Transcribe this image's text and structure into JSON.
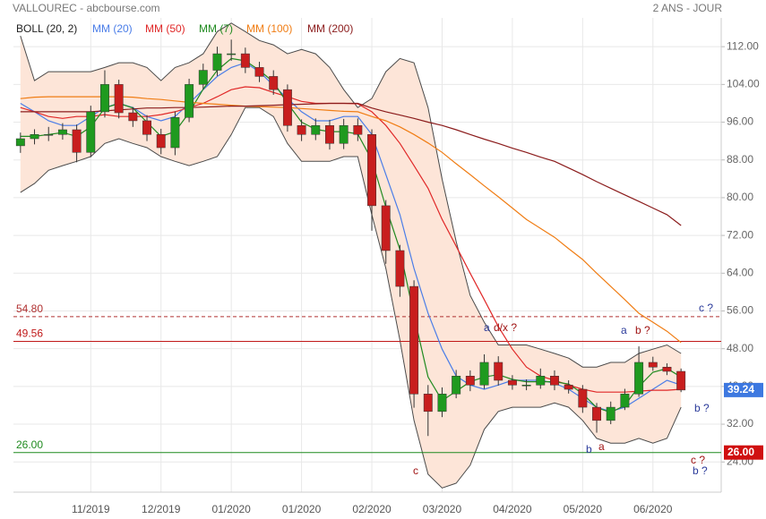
{
  "chart_data": {
    "type": "candlestick",
    "title": "VALLOUREC - abcbourse.com",
    "subtitle": "2 ANS - JOUR",
    "categories": [
      null,
      null,
      null,
      null,
      null,
      "11/2019",
      null,
      null,
      null,
      null,
      "12/2019",
      null,
      null,
      null,
      null,
      "01/2020",
      null,
      null,
      null,
      null,
      "01/2020",
      null,
      null,
      null,
      null,
      "02/2020",
      null,
      null,
      null,
      null,
      "03/2020",
      null,
      null,
      null,
      null,
      "04/2020",
      null,
      null,
      null,
      null,
      "05/2020",
      null,
      null,
      null,
      null,
      "06/2020",
      null,
      null
    ],
    "open": [
      91,
      92.5,
      93.4,
      93.4,
      94.4,
      89.6,
      98.2,
      104,
      98,
      96.3,
      93.4,
      90.6,
      97,
      104,
      107,
      110.5,
      110.5,
      107.6,
      105.7,
      102.9,
      95.3,
      93.4,
      95.3,
      91.5,
      95.3,
      93.4,
      78.3,
      68.8,
      61.2,
      38.4,
      34.7,
      38.4,
      42.2,
      40.3,
      45.1,
      41.3,
      40.3,
      40.3,
      42.2,
      40.3,
      39.4,
      35.6,
      32.8,
      35.6,
      38.4,
      45.1,
      44.1,
      43.2
    ],
    "high": [
      93.8,
      94.5,
      95,
      95.8,
      95.5,
      99.5,
      107,
      105,
      99.2,
      97.5,
      94.6,
      98.3,
      105.2,
      108.4,
      112,
      113.5,
      111.8,
      108.8,
      107,
      104,
      96.6,
      96.8,
      96.5,
      96.7,
      96.8,
      94.5,
      79.5,
      70,
      62.5,
      40.3,
      39.8,
      43.5,
      43.4,
      46.8,
      46.4,
      42.4,
      41.5,
      43.8,
      43.4,
      41.3,
      40.3,
      36.5,
      36.8,
      39.5,
      48.5,
      46.3,
      44.9,
      43.8
    ],
    "low": [
      89.5,
      91.3,
      92,
      92.3,
      87.5,
      88.6,
      97,
      96.8,
      95,
      92,
      89.2,
      89,
      96,
      103,
      105.8,
      109,
      106.4,
      104.5,
      101.8,
      94,
      92,
      92.2,
      90.2,
      90.3,
      92,
      73,
      66,
      59,
      35.5,
      29.5,
      33.5,
      37.5,
      39,
      39.5,
      40.2,
      39.3,
      39.2,
      39.5,
      39.2,
      38.5,
      34.4,
      30.2,
      32,
      35,
      37.8,
      43.3,
      42.4,
      38.8
    ],
    "close": [
      92.5,
      93.4,
      93.4,
      94.4,
      89.6,
      98.2,
      104,
      98,
      96.3,
      93.4,
      90.6,
      97,
      104,
      107,
      110.5,
      110.5,
      107.6,
      105.7,
      102.9,
      95.3,
      93.4,
      95.3,
      91.5,
      95.3,
      93.4,
      78.3,
      68.8,
      61.2,
      38.4,
      34.7,
      38.4,
      42.2,
      40.3,
      45.1,
      41.3,
      40.3,
      40.3,
      42.2,
      40.3,
      39.4,
      35.6,
      32.8,
      35.6,
      38.4,
      45.1,
      44.1,
      43.2,
      39.24
    ],
    "up_color": "#1f9a1f",
    "down_color": "#c81e1e",
    "bands": {
      "name": "BOLL (20, 2)",
      "color": "#4a4a4a",
      "fill": "#fde5d8",
      "upper": [
        114.3,
        104.8,
        106.7,
        106.7,
        106.7,
        106.7,
        107.6,
        108.6,
        108.6,
        107.6,
        104.8,
        107.6,
        108.6,
        110.5,
        115.2,
        117,
        115.2,
        113.3,
        112.4,
        110.5,
        111.4,
        110.5,
        107.6,
        102.9,
        99.1,
        101,
        106.7,
        109.5,
        108.6,
        99.1,
        83.9,
        70.7,
        59.3,
        53.6,
        48.8,
        48.8,
        48.8,
        47.9,
        47,
        46,
        44.1,
        44.1,
        45.1,
        45.1,
        47,
        47.9,
        48.8,
        47
      ],
      "lower": [
        81.1,
        83,
        85.8,
        86.8,
        87.7,
        88.7,
        91.5,
        92.5,
        91.5,
        90.6,
        88.7,
        87.7,
        86.8,
        87.7,
        88.7,
        93.4,
        99.1,
        99.1,
        97.2,
        91.5,
        87.7,
        87.7,
        87.7,
        88.7,
        88.7,
        76.4,
        65,
        49.8,
        32.8,
        21.4,
        18.5,
        19.5,
        23.3,
        30.9,
        34.7,
        35.6,
        35.6,
        35.6,
        36.5,
        35.6,
        32.8,
        29,
        28,
        28,
        29,
        28,
        29,
        35.6
      ]
    },
    "series": [
      {
        "name": "MM (20)",
        "color": "#4a7de8",
        "values": [
          100,
          98.2,
          96.3,
          95.3,
          95.3,
          97.2,
          99.1,
          100,
          99.1,
          97.2,
          96.3,
          97.2,
          100,
          102.9,
          105.7,
          107.6,
          108.6,
          106.7,
          103.8,
          101,
          98.2,
          96.3,
          96.3,
          97.2,
          97.2,
          93.4,
          84.9,
          76.4,
          65,
          55.5,
          47.9,
          42.2,
          40.3,
          39.4,
          40.3,
          41.3,
          41.3,
          41.3,
          40.7,
          39.4,
          37.5,
          35.6,
          34.7,
          35.6,
          37.5,
          39.4,
          41.3,
          40.3
        ]
      },
      {
        "name": "MM (50)",
        "color": "#e02828",
        "values": [
          99.1,
          98.2,
          97.2,
          96.8,
          97.2,
          97.2,
          97.6,
          97.2,
          97.2,
          97.2,
          97.6,
          98.2,
          99.1,
          100,
          101.4,
          102.9,
          103.5,
          103.3,
          102.3,
          101.4,
          100.4,
          100,
          100,
          100,
          99.9,
          98.2,
          95.3,
          91.5,
          86.8,
          82,
          75.4,
          69.7,
          64,
          58.4,
          52.7,
          47.9,
          44.1,
          42.2,
          41.3,
          40.3,
          39.4,
          38.8,
          38.8,
          38.8,
          39,
          39.2,
          39.2,
          39.4
        ]
      },
      {
        "name": "MM (7)",
        "color": "#1f8a1f",
        "values": [
          93,
          93,
          93.4,
          93.8,
          93,
          95,
          99,
          100,
          99,
          96,
          93,
          94,
          98,
          103,
          107,
          109.5,
          109,
          107,
          104.5,
          100,
          96,
          94.5,
          94,
          94,
          93.5,
          88,
          78,
          69,
          55,
          42,
          37,
          39,
          41,
          42,
          42.5,
          41.5,
          41,
          41,
          41,
          40.5,
          38.5,
          35.5,
          34.5,
          36,
          40,
          43,
          43.8,
          42
        ]
      },
      {
        "name": "MM (100)",
        "color": "#f07d14",
        "values": [
          101,
          101.3,
          101.4,
          101.4,
          101.4,
          101.4,
          101.4,
          101.4,
          101.3,
          101,
          100.8,
          100.5,
          100.2,
          100,
          99.8,
          99.6,
          99.4,
          99.3,
          99.2,
          99.1,
          98.9,
          98.7,
          98.5,
          98.3,
          98.2,
          97.2,
          96.3,
          95,
          93.4,
          91.6,
          89.6,
          87.2,
          84.9,
          82.5,
          80.2,
          77.8,
          75.4,
          73.5,
          71.6,
          69.2,
          66.9,
          64,
          61.2,
          58.4,
          55.5,
          53.6,
          51.7,
          49.3
        ]
      },
      {
        "name": "MM (200)",
        "color": "#8b1c1c",
        "values": [
          98.2,
          98.2,
          98.2,
          98.2,
          98.2,
          98.2,
          98.4,
          98.6,
          98.8,
          99,
          99,
          99.1,
          99.1,
          99.2,
          99.3,
          99.4,
          99.4,
          99.5,
          99.6,
          99.7,
          99.8,
          99.9,
          100,
          100,
          100,
          99,
          98.2,
          97.5,
          96.8,
          96,
          95.3,
          94.4,
          93.4,
          92.4,
          91.5,
          90.5,
          89.6,
          88.6,
          87.7,
          86.3,
          84.9,
          83.4,
          82,
          80.6,
          79.2,
          77.8,
          76.4,
          74.1
        ]
      }
    ],
    "levels": [
      {
        "value": 54.8,
        "label": "54.80",
        "color": "#b03030",
        "style": "dashed"
      },
      {
        "value": 49.56,
        "label": "49.56",
        "color": "#c01818",
        "style": "solid"
      },
      {
        "value": 26,
        "label": "26.00",
        "color": "#1f8a1f",
        "style": "solid",
        "box_color": "#d01010"
      }
    ],
    "last_price": {
      "value": 39.24,
      "color": "#3d78e0"
    },
    "annotations": [
      {
        "text": "c",
        "color": "#a01414"
      },
      {
        "text": "a",
        "color": "#2a3a9a"
      },
      {
        "text": "d/x ?",
        "color": "#a01414"
      },
      {
        "text": "a",
        "color": "#2a3a9a"
      },
      {
        "text": "b ?",
        "color": "#a01414"
      },
      {
        "text": "c ?",
        "color": "#2a3a9a"
      },
      {
        "text": "b ?",
        "color": "#2a3a9a"
      },
      {
        "text": "b",
        "color": "#2a3a9a"
      },
      {
        "text": "a",
        "color": "#a01414"
      },
      {
        "text": "c ?",
        "color": "#a01414"
      },
      {
        "text": "b ?",
        "color": "#2a3a9a"
      }
    ],
    "ylim": [
      17.6,
      118.1
    ],
    "yticks": [
      {
        "value": 24,
        "label": "24.00"
      },
      {
        "value": 32,
        "label": "32.00"
      },
      {
        "value": 40,
        "label": "40.00"
      },
      {
        "value": 48,
        "label": "48.00"
      },
      {
        "value": 56,
        "label": "56.00"
      },
      {
        "value": 64,
        "label": "64.00"
      },
      {
        "value": 72,
        "label": "72.00"
      },
      {
        "value": 80,
        "label": "80.00"
      },
      {
        "value": 88,
        "label": "88.00"
      },
      {
        "value": 96,
        "label": "96.00"
      },
      {
        "value": 104,
        "label": "104.00"
      },
      {
        "value": 112,
        "label": "112.00"
      }
    ],
    "grid": true
  }
}
